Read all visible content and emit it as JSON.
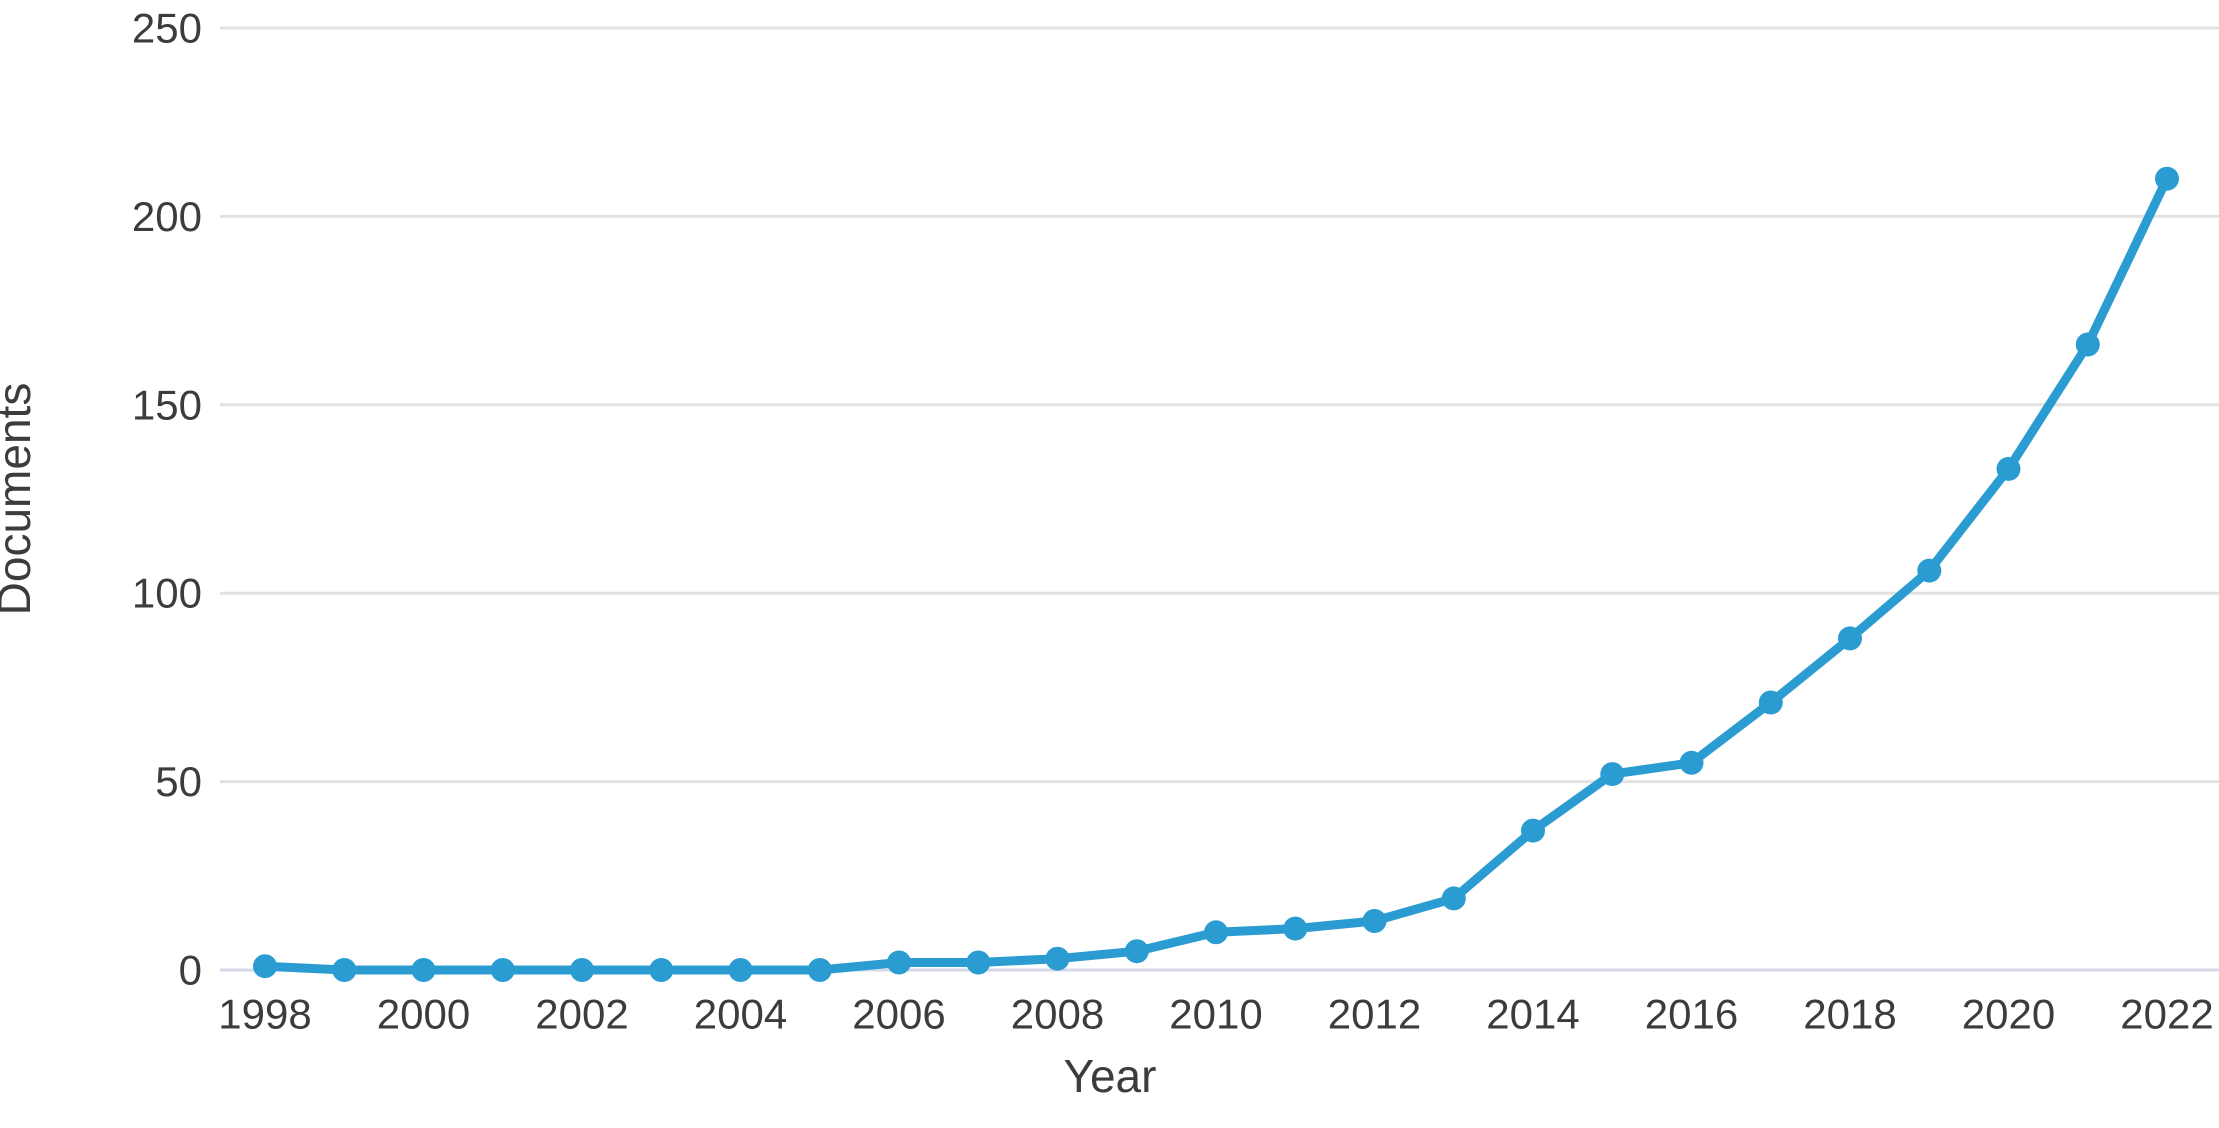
{
  "page": {
    "background": "#ffffff"
  },
  "chart_data": {
    "type": "line",
    "title": "",
    "xlabel": "Year",
    "ylabel": "Documents",
    "x": [
      1998,
      1999,
      2000,
      2001,
      2002,
      2003,
      2004,
      2005,
      2006,
      2007,
      2008,
      2009,
      2010,
      2011,
      2012,
      2013,
      2014,
      2015,
      2016,
      2017,
      2018,
      2019,
      2020,
      2021,
      2022
    ],
    "series": [
      {
        "name": "Documents",
        "values": [
          1,
          0,
          0,
          0,
          0,
          0,
          0,
          0,
          2,
          2,
          3,
          5,
          10,
          11,
          13,
          19,
          37,
          52,
          55,
          71,
          88,
          106,
          133,
          166,
          210
        ]
      }
    ],
    "ylim": [
      0,
      250
    ],
    "y_ticks": [
      0,
      50,
      100,
      150,
      200,
      250
    ],
    "x_tick_labels": [
      "1998",
      "2000",
      "2002",
      "2004",
      "2006",
      "2008",
      "2010",
      "2012",
      "2014",
      "2016",
      "2018",
      "2020",
      "2022"
    ],
    "grid": "horizontal",
    "legend": "none",
    "marker": "filled-circle",
    "colors": {
      "series": "#2B9CD2",
      "grid": "#E2E2E2",
      "baseline": "#D7D7EB",
      "text": "#3C3C3C"
    }
  }
}
